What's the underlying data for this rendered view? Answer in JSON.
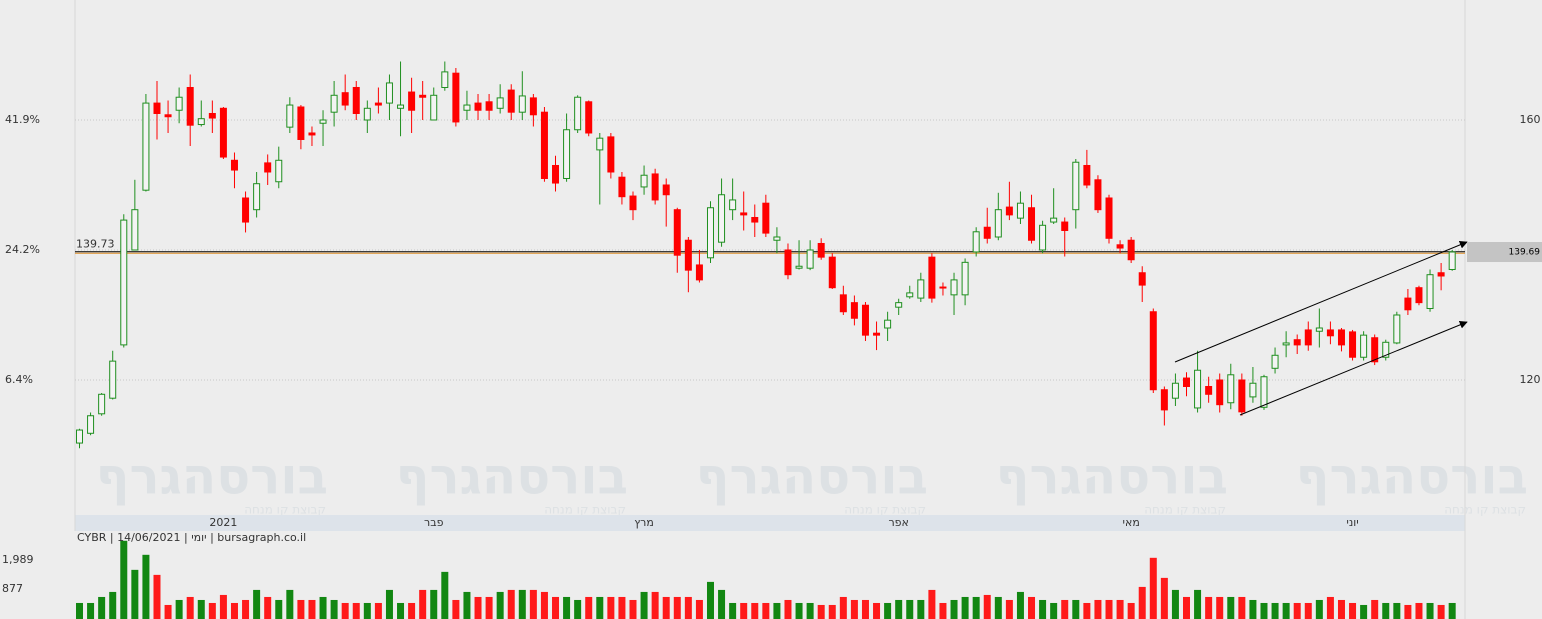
{
  "chart_data": {
    "type": "candlestick",
    "info": "CYBR | 14/06/2021 | יומי | bursagraph.co.il",
    "watermark": "בורסהגרף",
    "watermark_subtitle": "קבוצת קו מנחה",
    "categories": [
      null,
      null,
      null,
      null,
      null,
      null,
      null,
      null,
      null,
      null,
      null,
      null,
      null,
      "2021",
      null,
      null,
      null,
      null,
      null,
      null,
      null,
      null,
      null,
      null,
      null,
      null,
      null,
      null,
      null,
      null,
      null,
      null,
      "פבר",
      null,
      null,
      null,
      null,
      null,
      null,
      null,
      null,
      null,
      null,
      null,
      null,
      null,
      null,
      null,
      null,
      null,
      null,
      "מרץ",
      null,
      null,
      null,
      null,
      null,
      null,
      null,
      null,
      null,
      null,
      null,
      null,
      null,
      null,
      null,
      null,
      null,
      null,
      null,
      null,
      null,
      null,
      "אפר",
      null,
      null,
      null,
      null,
      null,
      null,
      null,
      null,
      null,
      null,
      null,
      null,
      null,
      null,
      null,
      null,
      null,
      null,
      null,
      null,
      "מאי",
      null,
      null,
      null,
      null,
      null,
      null,
      null,
      null,
      null,
      null,
      null,
      null,
      null,
      null,
      null,
      null,
      null,
      null,
      null,
      "יוני",
      null,
      null,
      null,
      null,
      null,
      null,
      null,
      null,
      null
    ],
    "open": [
      110.3,
      111.8,
      114.8,
      117.2,
      125.4,
      140,
      149.2,
      162.6,
      160.8,
      161.5,
      165,
      159.3,
      161,
      161.8,
      153.8,
      148,
      146.2,
      153.4,
      150.5,
      158.9,
      162,
      158,
      159.5,
      161.2,
      164.2,
      165,
      160,
      162.6,
      162.6,
      161.8,
      164.3,
      163.8,
      160,
      165,
      167.2,
      161.5,
      162.6,
      162.8,
      161.8,
      164.6,
      161.2,
      163.4,
      161.2,
      153,
      151,
      158.5,
      162.8,
      155.4,
      157.4,
      151.2,
      148.3,
      149.7,
      151.7,
      150,
      146.2,
      141.5,
      137.7,
      138.8,
      141.2,
      146.2,
      145.7,
      145,
      147.2,
      141.5,
      140,
      137.2,
      137.2,
      141,
      138.9,
      133.1,
      131.9,
      131.5,
      127.2,
      128,
      131.2,
      132.8,
      132.6,
      138.9,
      134.3,
      133.1,
      133.1,
      139.7,
      143.5,
      142,
      146.6,
      144.9,
      146.5,
      140,
      144.3,
      144.3,
      146.2,
      153,
      150.8,
      148,
      140.8,
      141.5,
      136.5,
      130.5,
      118.5,
      117.2,
      120.3,
      115.7,
      119,
      120,
      116.5,
      120,
      117.4,
      115.8,
      121.8,
      125.4,
      126.2,
      127.7,
      127.5,
      127.7,
      127.7,
      127.4,
      123.5,
      126.5,
      123.5,
      125.7,
      132.6,
      134.2,
      131,
      136.5,
      137
    ],
    "high": [
      112.5,
      115,
      118,
      124.5,
      145.5,
      150.8,
      164,
      166,
      163,
      165,
      167,
      163,
      163,
      162,
      155,
      149,
      152,
      154.7,
      155.9,
      163.5,
      162.3,
      159,
      161.5,
      166,
      167,
      166,
      163,
      165,
      167,
      169,
      166.5,
      166,
      165,
      169,
      168,
      164.5,
      164,
      164,
      165.5,
      165.5,
      167.5,
      164,
      162,
      154.5,
      161,
      163.8,
      163,
      158,
      158,
      152,
      149,
      153,
      152.5,
      151,
      146.5,
      142,
      140,
      147.5,
      151,
      151,
      149,
      147,
      148.5,
      143.5,
      141,
      141.5,
      141.5,
      141.8,
      139.5,
      134.5,
      133,
      132,
      129,
      130.5,
      132.5,
      134.5,
      136.5,
      139.5,
      135,
      136.5,
      138.7,
      143.5,
      146.5,
      148.8,
      150.5,
      149,
      148.5,
      144.5,
      149.5,
      145,
      154,
      155.4,
      151.5,
      148.5,
      141.5,
      142,
      137.5,
      131,
      119,
      121,
      121.2,
      124.5,
      120.5,
      121,
      122.5,
      121,
      122,
      120.8,
      125,
      127.5,
      127,
      129,
      131,
      129,
      128,
      127.7,
      127.5,
      127,
      126.2,
      130.5,
      134,
      134.5,
      137,
      138,
      140
    ],
    "low": [
      109.5,
      111.5,
      114.5,
      117,
      125,
      140,
      149,
      157,
      158,
      159.5,
      156,
      159,
      158,
      154,
      149.5,
      142.7,
      145,
      150,
      149.5,
      158,
      155.5,
      156,
      156,
      159,
      161.5,
      160,
      158,
      161,
      160,
      157.5,
      158,
      160,
      160,
      164.5,
      159,
      160,
      160,
      160,
      161,
      160,
      160,
      159,
      150.5,
      149,
      150.5,
      158,
      157.5,
      147,
      151,
      147,
      144.6,
      148.5,
      147,
      143.6,
      136.5,
      133.5,
      135,
      138,
      140.5,
      144.6,
      143,
      142,
      142,
      139.5,
      135.5,
      137,
      136.9,
      138.5,
      134,
      130,
      128.4,
      126,
      124.6,
      126,
      130,
      132.5,
      132,
      131.9,
      133,
      130,
      131.5,
      139,
      141,
      141.5,
      144.6,
      144,
      141,
      139.5,
      144,
      139,
      143.3,
      149.5,
      145.7,
      141,
      139.5,
      138,
      132,
      118,
      113,
      116,
      117.5,
      115,
      116.5,
      115,
      115.5,
      114.5,
      116.5,
      115.4,
      121,
      123.5,
      124,
      124.5,
      125,
      125.5,
      124.4,
      123,
      123,
      122.3,
      123,
      125.5,
      130,
      131.5,
      130.5,
      133.8,
      136.8
    ],
    "close": [
      112.3,
      114.5,
      117.8,
      122.9,
      144.6,
      146.2,
      162.6,
      161,
      160.5,
      163.5,
      159.2,
      160.2,
      160.3,
      154.3,
      152.3,
      144.3,
      150.2,
      152,
      153.8,
      162.3,
      157,
      157.7,
      160,
      163.8,
      162.3,
      161,
      161.8,
      162.3,
      165.7,
      162.3,
      161.5,
      163.5,
      163.8,
      167.4,
      159.7,
      162.3,
      161.5,
      161.5,
      163.4,
      161.2,
      163.7,
      160.8,
      151,
      150.3,
      158.5,
      163.5,
      158,
      157.2,
      152,
      148.2,
      146.2,
      151.5,
      147.7,
      148.5,
      139.2,
      136.9,
      135.4,
      146.5,
      148.5,
      147.7,
      145.4,
      144.3,
      142.6,
      142,
      136.2,
      137.5,
      140,
      138.9,
      134.2,
      130.5,
      129.5,
      126.9,
      126.9,
      129.2,
      131.9,
      133.4,
      135.4,
      132.6,
      134.2,
      135.4,
      138.1,
      142.8,
      141.8,
      146.2,
      145.4,
      147.2,
      141.5,
      143.8,
      144.9,
      143,
      153.5,
      150,
      146.2,
      141.8,
      140.3,
      138.5,
      134.6,
      118.5,
      115.4,
      119.5,
      119,
      121.5,
      117.8,
      116.2,
      120.8,
      115.1,
      119.5,
      120.5,
      123.8,
      125.7,
      125.4,
      125.4,
      128,
      126.8,
      125.4,
      123.5,
      126.9,
      122.8,
      125.8,
      130,
      130.8,
      131.9,
      136.2,
      136,
      139.69
    ],
    "volume": [
      340,
      340,
      570,
      762,
      2717,
      1606,
      2181,
      1414,
      264,
      455,
      570,
      455,
      340,
      647,
      340,
      455,
      839,
      570,
      455,
      839,
      455,
      455,
      570,
      455,
      340,
      340,
      340,
      340,
      839,
      340,
      340,
      839,
      839,
      1529,
      455,
      762,
      570,
      570,
      762,
      839,
      839,
      839,
      762,
      570,
      570,
      455,
      570,
      570,
      570,
      570,
      455,
      762,
      762,
      570,
      570,
      570,
      455,
      1146,
      839,
      340,
      340,
      340,
      340,
      340,
      455,
      340,
      340,
      264,
      264,
      570,
      455,
      455,
      340,
      340,
      455,
      455,
      455,
      839,
      340,
      455,
      570,
      570,
      647,
      570,
      455,
      762,
      570,
      455,
      340,
      455,
      455,
      340,
      455,
      455,
      455,
      340,
      954,
      2066,
      1299,
      839,
      570,
      839,
      570,
      570,
      570,
      570,
      455,
      340,
      340,
      340,
      340,
      340,
      455,
      570,
      455,
      340,
      264,
      455,
      340,
      340,
      264,
      340,
      340,
      264,
      340
    ],
    "up_color": "#1f8f1f",
    "down_color": "#ff0000",
    "reference_line": 139.73,
    "ylim": [
      99.23,
      178.46
    ],
    "yticks": [
      120,
      140,
      160
    ],
    "y_percent_ticks": [
      {
        "value": 120,
        "label": "6.4%"
      },
      {
        "value": 140,
        "label": "24.2%"
      },
      {
        "value": 160,
        "label": "41.9%"
      }
    ],
    "volume_ylim": [
      -196,
      2900
    ],
    "volume_ticks": [
      {
        "value": 877,
        "label": "877"
      },
      {
        "value": 1989,
        "label": "1,989"
      }
    ],
    "grid": true
  }
}
